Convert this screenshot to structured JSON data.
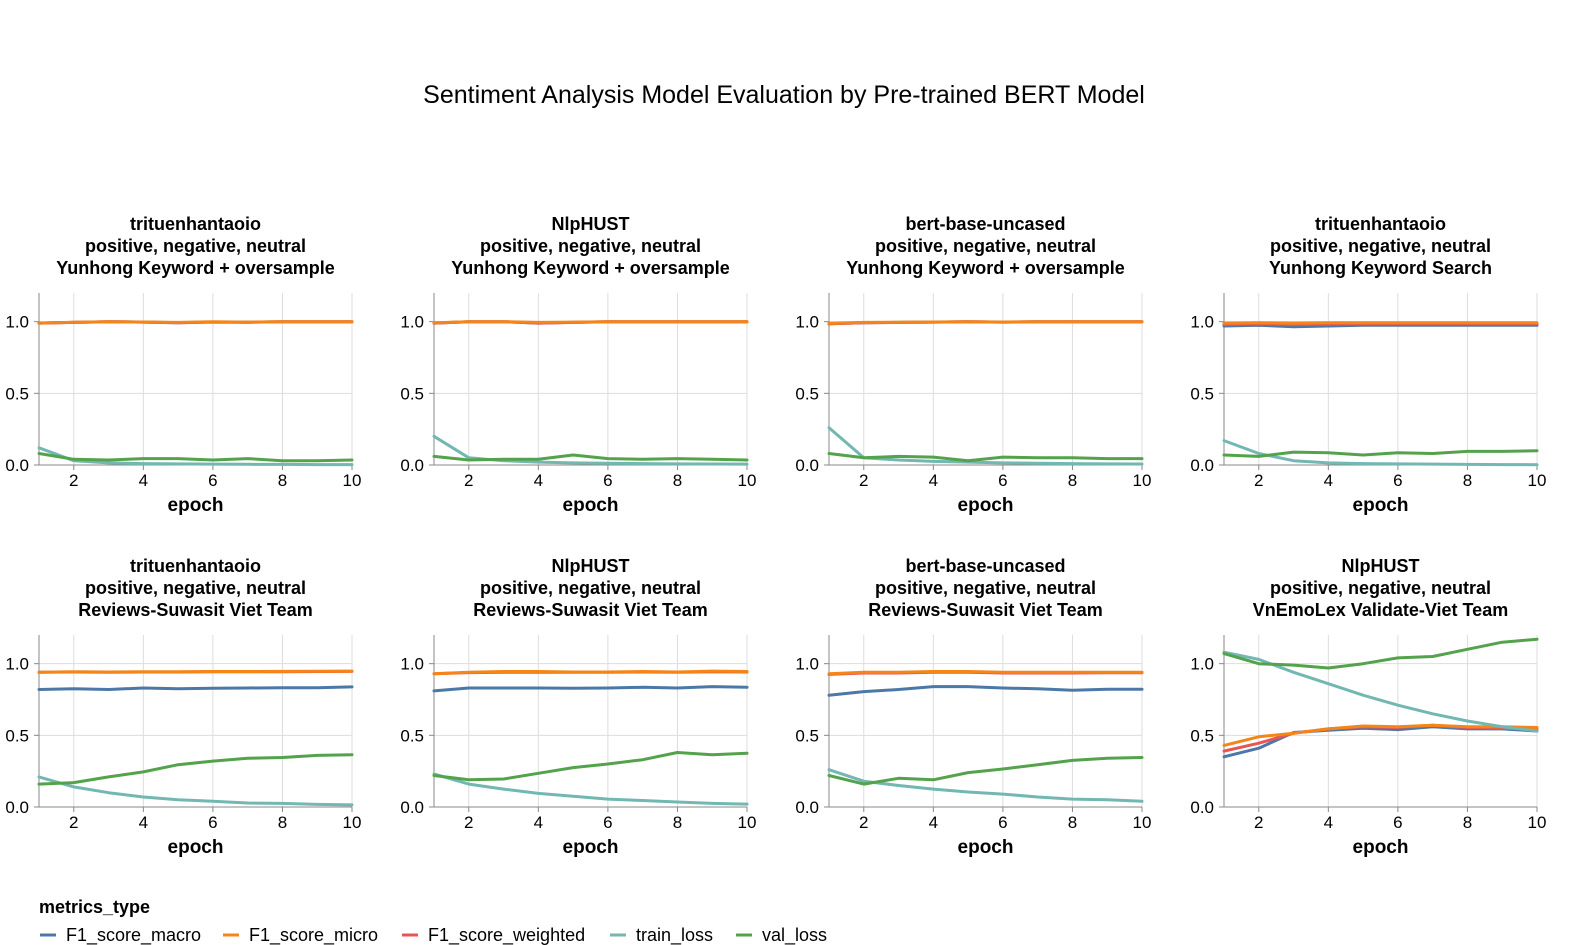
{
  "chart_data": {
    "type": "line",
    "title": "Sentiment Analysis Model Evaluation by Pre-trained BERT Model",
    "xlabel": "epoch",
    "x_ticks": [
      2,
      4,
      6,
      8,
      10
    ],
    "y_ticks": [
      "0.0",
      "0.5",
      "1.0"
    ],
    "xlim": [
      1,
      10
    ],
    "ylim": [
      0,
      1.2
    ],
    "grid": true,
    "legend": {
      "title": "metrics_type",
      "placement": "bottom-left",
      "entries": [
        "F1_score_macro",
        "F1_score_micro",
        "F1_score_weighted",
        "train_loss",
        "val_loss"
      ]
    },
    "colors": {
      "F1_score_macro": "#4c78a8",
      "F1_score_micro": "#f58518",
      "F1_score_weighted": "#e45756",
      "train_loss": "#72b7b2",
      "val_loss": "#54a24b"
    },
    "x": [
      1,
      2,
      3,
      4,
      5,
      6,
      7,
      8,
      9,
      10
    ],
    "panels": [
      {
        "title_lines": [
          "trituenhantaoio",
          "positive, negative, neutral",
          "Yunhong Keyword + oversample"
        ],
        "series": [
          {
            "name": "F1_score_macro",
            "values": [
              0.99,
              0.995,
              1.0,
              0.997,
              0.993,
              0.998,
              0.996,
              1.0,
              1.0,
              1.0
            ]
          },
          {
            "name": "F1_score_weighted",
            "values": [
              0.99,
              0.995,
              1.0,
              0.997,
              0.993,
              0.998,
              0.996,
              1.0,
              1.0,
              1.0
            ]
          },
          {
            "name": "F1_score_micro",
            "values": [
              0.99,
              0.996,
              1.0,
              0.998,
              0.995,
              0.999,
              0.997,
              1.0,
              1.0,
              1.0
            ]
          },
          {
            "name": "train_loss",
            "values": [
              0.12,
              0.03,
              0.015,
              0.01,
              0.008,
              0.006,
              0.005,
              0.004,
              0.003,
              0.003
            ]
          },
          {
            "name": "val_loss",
            "values": [
              0.08,
              0.04,
              0.035,
              0.045,
              0.045,
              0.035,
              0.045,
              0.03,
              0.03,
              0.035
            ]
          }
        ]
      },
      {
        "title_lines": [
          "NlpHUST",
          "positive, negative, neutral",
          "Yunhong Keyword + oversample"
        ],
        "series": [
          {
            "name": "F1_score_macro",
            "values": [
              0.99,
              1.0,
              1.0,
              0.99,
              0.995,
              1.0,
              1.0,
              1.0,
              1.0,
              1.0
            ]
          },
          {
            "name": "F1_score_weighted",
            "values": [
              0.99,
              1.0,
              1.0,
              0.99,
              0.995,
              1.0,
              1.0,
              1.0,
              1.0,
              1.0
            ]
          },
          {
            "name": "F1_score_micro",
            "values": [
              0.992,
              1.0,
              1.0,
              0.995,
              0.997,
              1.0,
              1.0,
              1.0,
              1.0,
              1.0
            ]
          },
          {
            "name": "train_loss",
            "values": [
              0.2,
              0.05,
              0.03,
              0.02,
              0.015,
              0.012,
              0.01,
              0.008,
              0.007,
              0.006
            ]
          },
          {
            "name": "val_loss",
            "values": [
              0.06,
              0.035,
              0.04,
              0.04,
              0.07,
              0.045,
              0.04,
              0.045,
              0.04,
              0.035
            ]
          }
        ]
      },
      {
        "title_lines": [
          "bert-base-uncased",
          "positive, negative, neutral",
          "Yunhong Keyword + oversample"
        ],
        "series": [
          {
            "name": "F1_score_macro",
            "values": [
              0.985,
              0.993,
              0.995,
              0.997,
              1.0,
              0.997,
              1.0,
              1.0,
              1.0,
              1.0
            ]
          },
          {
            "name": "F1_score_weighted",
            "values": [
              0.985,
              0.993,
              0.995,
              0.997,
              1.0,
              0.997,
              1.0,
              1.0,
              1.0,
              1.0
            ]
          },
          {
            "name": "F1_score_micro",
            "values": [
              0.988,
              0.995,
              0.996,
              0.998,
              1.0,
              0.998,
              1.0,
              1.0,
              1.0,
              1.0
            ]
          },
          {
            "name": "train_loss",
            "values": [
              0.26,
              0.05,
              0.035,
              0.025,
              0.02,
              0.015,
              0.012,
              0.01,
              0.008,
              0.007
            ]
          },
          {
            "name": "val_loss",
            "values": [
              0.08,
              0.05,
              0.06,
              0.055,
              0.03,
              0.055,
              0.05,
              0.05,
              0.045,
              0.045
            ]
          }
        ]
      },
      {
        "title_lines": [
          "trituenhantaoio",
          "positive, negative, neutral",
          "Yunhong Keyword Search"
        ],
        "series": [
          {
            "name": "F1_score_macro",
            "values": [
              0.97,
              0.975,
              0.965,
              0.97,
              0.975,
              0.975,
              0.975,
              0.975,
              0.975,
              0.975
            ]
          },
          {
            "name": "F1_score_weighted",
            "values": [
              0.98,
              0.985,
              0.98,
              0.983,
              0.985,
              0.985,
              0.985,
              0.985,
              0.985,
              0.985
            ]
          },
          {
            "name": "F1_score_micro",
            "values": [
              0.99,
              0.993,
              0.99,
              0.992,
              0.993,
              0.993,
              0.993,
              0.993,
              0.993,
              0.993
            ]
          },
          {
            "name": "train_loss",
            "values": [
              0.17,
              0.08,
              0.03,
              0.015,
              0.01,
              0.008,
              0.006,
              0.004,
              0.003,
              0.002
            ]
          },
          {
            "name": "val_loss",
            "values": [
              0.07,
              0.06,
              0.09,
              0.085,
              0.07,
              0.085,
              0.08,
              0.095,
              0.095,
              0.1
            ]
          }
        ]
      },
      {
        "title_lines": [
          "trituenhantaoio",
          "positive, negative, neutral",
          "Reviews-Suwasit Viet Team"
        ],
        "series": [
          {
            "name": "F1_score_macro",
            "values": [
              0.82,
              0.825,
              0.82,
              0.83,
              0.825,
              0.828,
              0.83,
              0.832,
              0.832,
              0.838
            ]
          },
          {
            "name": "F1_score_weighted",
            "values": [
              0.94,
              0.942,
              0.94,
              0.942,
              0.942,
              0.943,
              0.943,
              0.944,
              0.945,
              0.946
            ]
          },
          {
            "name": "F1_score_micro",
            "values": [
              0.94,
              0.943,
              0.942,
              0.944,
              0.944,
              0.945,
              0.945,
              0.946,
              0.947,
              0.948
            ]
          },
          {
            "name": "train_loss",
            "values": [
              0.21,
              0.14,
              0.1,
              0.07,
              0.05,
              0.04,
              0.028,
              0.025,
              0.018,
              0.015
            ]
          },
          {
            "name": "val_loss",
            "values": [
              0.16,
              0.17,
              0.21,
              0.245,
              0.295,
              0.32,
              0.34,
              0.345,
              0.36,
              0.365
            ]
          }
        ]
      },
      {
        "title_lines": [
          "NlpHUST",
          "positive, negative, neutral",
          "Reviews-Suwasit Viet Team"
        ],
        "series": [
          {
            "name": "F1_score_macro",
            "values": [
              0.81,
              0.83,
              0.83,
              0.83,
              0.828,
              0.83,
              0.835,
              0.83,
              0.84,
              0.835
            ]
          },
          {
            "name": "F1_score_weighted",
            "values": [
              0.93,
              0.938,
              0.94,
              0.94,
              0.94,
              0.94,
              0.942,
              0.94,
              0.944,
              0.942
            ]
          },
          {
            "name": "F1_score_micro",
            "values": [
              0.93,
              0.94,
              0.945,
              0.945,
              0.942,
              0.942,
              0.945,
              0.942,
              0.948,
              0.945
            ]
          },
          {
            "name": "train_loss",
            "values": [
              0.23,
              0.16,
              0.125,
              0.095,
              0.075,
              0.055,
              0.045,
              0.035,
              0.025,
              0.02
            ]
          },
          {
            "name": "val_loss",
            "values": [
              0.22,
              0.19,
              0.195,
              0.235,
              0.275,
              0.3,
              0.33,
              0.38,
              0.365,
              0.375
            ]
          }
        ]
      },
      {
        "title_lines": [
          "bert-base-uncased",
          "positive, negative, neutral",
          "Reviews-Suwasit Viet Team"
        ],
        "series": [
          {
            "name": "F1_score_macro",
            "values": [
              0.78,
              0.805,
              0.82,
              0.84,
              0.84,
              0.83,
              0.825,
              0.815,
              0.822,
              0.822
            ]
          },
          {
            "name": "F1_score_weighted",
            "values": [
              0.925,
              0.935,
              0.935,
              0.94,
              0.94,
              0.935,
              0.935,
              0.935,
              0.936,
              0.936
            ]
          },
          {
            "name": "F1_score_micro",
            "values": [
              0.93,
              0.94,
              0.94,
              0.945,
              0.945,
              0.94,
              0.94,
              0.94,
              0.94,
              0.94
            ]
          },
          {
            "name": "train_loss",
            "values": [
              0.26,
              0.18,
              0.15,
              0.125,
              0.105,
              0.09,
              0.07,
              0.055,
              0.05,
              0.04
            ]
          },
          {
            "name": "val_loss",
            "values": [
              0.22,
              0.16,
              0.2,
              0.19,
              0.24,
              0.265,
              0.295,
              0.325,
              0.34,
              0.345
            ]
          }
        ]
      },
      {
        "title_lines": [
          "NlpHUST",
          "positive, negative, neutral",
          "VnEmoLex Validate-Viet Team"
        ],
        "series": [
          {
            "name": "F1_score_macro",
            "values": [
              0.35,
              0.41,
              0.52,
              0.535,
              0.55,
              0.54,
              0.56,
              0.545,
              0.545,
              0.53
            ]
          },
          {
            "name": "F1_score_weighted",
            "values": [
              0.39,
              0.445,
              0.515,
              0.545,
              0.56,
              0.555,
              0.57,
              0.555,
              0.55,
              0.545
            ]
          },
          {
            "name": "F1_score_micro",
            "values": [
              0.43,
              0.49,
              0.515,
              0.545,
              0.565,
              0.56,
              0.57,
              0.56,
              0.56,
              0.555
            ]
          },
          {
            "name": "train_loss",
            "values": [
              1.08,
              1.03,
              0.94,
              0.86,
              0.78,
              0.71,
              0.65,
              0.6,
              0.56,
              0.53
            ]
          },
          {
            "name": "val_loss",
            "values": [
              1.07,
              1.0,
              0.99,
              0.97,
              1.0,
              1.04,
              1.05,
              1.1,
              1.15,
              1.17
            ]
          }
        ]
      }
    ]
  }
}
